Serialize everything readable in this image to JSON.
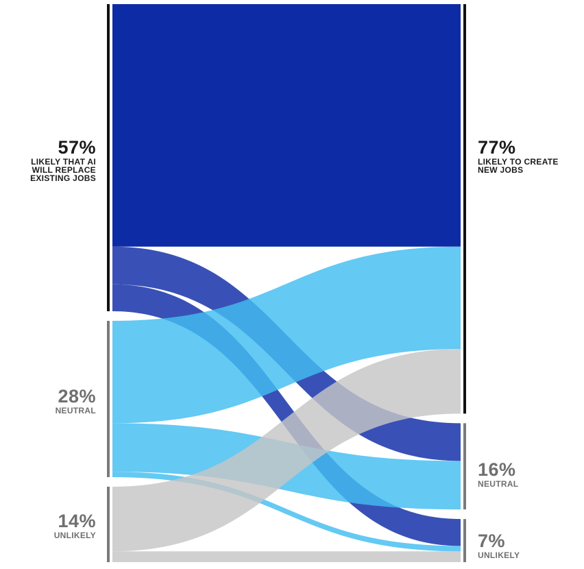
{
  "colors": {
    "likely": "#0e2ba6",
    "neutral": "#42bdf0",
    "unlikely": "#c6c6c6",
    "bar_likely": "#111111",
    "bar_other": "#7a7a7a"
  },
  "left": {
    "likely": {
      "pct": "57%",
      "caption": "LIKELY THAT AI WILL REPLACE EXISTING JOBS"
    },
    "neutral": {
      "pct": "28%",
      "caption": "NEUTRAL"
    },
    "unlikely": {
      "pct": "14%",
      "caption": "UNLIKELY"
    }
  },
  "right": {
    "likely": {
      "pct": "77%",
      "caption": "LIKELY TO CREATE NEW JOBS"
    },
    "neutral": {
      "pct": "16%",
      "caption": "NEUTRAL"
    },
    "unlikely": {
      "pct": "7%",
      "caption": "UNLIKELY"
    }
  },
  "chart_data": {
    "type": "sankey",
    "nodes_left": [
      "57%",
      "28%",
      "14%"
    ],
    "nodes_right": [
      "77%",
      "16%",
      "7%"
    ],
    "flows": [
      {
        "from": "likely",
        "to": "likely",
        "value": 45
      },
      {
        "from": "likely",
        "to": "neutral",
        "value": 7
      },
      {
        "from": "likely",
        "to": "unlikely",
        "value": 5
      },
      {
        "from": "neutral",
        "to": "likely",
        "value": 19
      },
      {
        "from": "neutral",
        "to": "neutral",
        "value": 9
      },
      {
        "from": "neutral",
        "to": "unlikely",
        "value": 1
      },
      {
        "from": "unlikely",
        "to": "likely",
        "value": 12
      },
      {
        "from": "unlikely",
        "to": "unlikely",
        "value": 2
      }
    ]
  }
}
